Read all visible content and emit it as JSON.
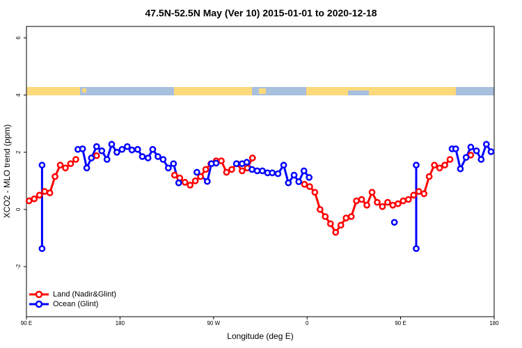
{
  "chart_data": {
    "type": "line",
    "title": "47.5N-52.5N May (Ver 10)   2015-01-01 to 2020-12-18",
    "xlabel": "Longitude (deg E)",
    "ylabel": "XCO2 - MLO trend (ppm)",
    "xlim": [
      90,
      540
    ],
    "xticks": [
      {
        "value": 90,
        "label": "90 E"
      },
      {
        "value": 180,
        "label": "180"
      },
      {
        "value": 270,
        "label": "90 W"
      },
      {
        "value": 360,
        "label": "0"
      },
      {
        "value": 450,
        "label": "90 E"
      },
      {
        "value": 540,
        "label": "180"
      }
    ],
    "ylim": [
      -3.75,
      6.4
    ],
    "yticks": [
      -2,
      0,
      2,
      4,
      6
    ],
    "legend": "bottom-left",
    "series": [
      {
        "name": "Land (Nadir&Glint)",
        "color": "#ff0000",
        "x": [
          92.5,
          97.5,
          102.5,
          107.5,
          112.5,
          117.5,
          122.5,
          127.5,
          132.5,
          137.5,
          null,
          157.5,
          null,
          232.5,
          237.5,
          242.5,
          247.5,
          252.5,
          257.5,
          262.5,
          267.5,
          272.5,
          277.5,
          282.5,
          287.5,
          292.5,
          297.5,
          302.5,
          307.5,
          null,
          357.5,
          362.5,
          367.5,
          372.5,
          377.5,
          382.5,
          387.5,
          392.5,
          397.5,
          402.5,
          407.5,
          412.5,
          417.5,
          422.5,
          427.5,
          432.5,
          437.5,
          442.5,
          447.5,
          452.5,
          457.5,
          462.5,
          467.5,
          472.5,
          477.5,
          482.5,
          487.5,
          492.5,
          497.5,
          null,
          517.5
        ],
        "values": [
          0.3,
          0.37,
          0.5,
          0.63,
          0.58,
          1.15,
          1.55,
          1.45,
          1.6,
          1.75,
          null,
          1.88,
          null,
          1.2,
          1.1,
          0.95,
          0.85,
          1.0,
          1.15,
          1.4,
          1.6,
          1.7,
          1.7,
          1.3,
          1.4,
          1.6,
          1.35,
          1.45,
          1.8,
          null,
          0.88,
          0.8,
          0.6,
          0.0,
          -0.25,
          -0.5,
          -0.8,
          -0.55,
          -0.3,
          -0.25,
          0.3,
          0.35,
          0.15,
          0.6,
          0.25,
          0.1,
          0.25,
          0.15,
          0.2,
          0.3,
          0.35,
          0.5,
          0.63,
          0.55,
          1.15,
          1.55,
          1.45,
          1.55,
          1.75,
          null,
          1.9
        ]
      },
      {
        "name": "Ocean (Glint)",
        "color": "#0000ff",
        "x": [
          105,
          105,
          null,
          139.5,
          144,
          148,
          152.5,
          157.5,
          162.5,
          167.5,
          172,
          177,
          182,
          187,
          191.5,
          197,
          201.5,
          207,
          211.5,
          216.5,
          221.5,
          226.5,
          231.5,
          236.5,
          null,
          254,
          264,
          268,
          272.5,
          null,
          292,
          297.5,
          302,
          307,
          312,
          317,
          322,
          326.5,
          332,
          337.5,
          342,
          347.5,
          352,
          357,
          362,
          null,
          444,
          null,
          465,
          465,
          null,
          499.5,
          503,
          507.5,
          513,
          517.5,
          523,
          527.5,
          532.5,
          537
        ],
        "values": [
          1.55,
          -1.37,
          null,
          2.1,
          2.12,
          1.45,
          1.8,
          2.2,
          2.05,
          1.75,
          2.28,
          2.0,
          2.1,
          2.2,
          2.08,
          2.1,
          1.85,
          1.8,
          2.1,
          1.85,
          1.75,
          1.45,
          1.6,
          0.93,
          null,
          1.3,
          0.98,
          1.6,
          1.62,
          null,
          1.6,
          1.6,
          1.65,
          1.4,
          1.35,
          1.35,
          1.28,
          1.28,
          1.25,
          1.55,
          0.93,
          1.2,
          0.97,
          1.35,
          1.12,
          null,
          -0.45,
          null,
          1.55,
          -1.37,
          null,
          2.12,
          2.12,
          1.42,
          1.82,
          2.18,
          2.05,
          1.75,
          2.28,
          2.02
        ]
      }
    ]
  }
}
